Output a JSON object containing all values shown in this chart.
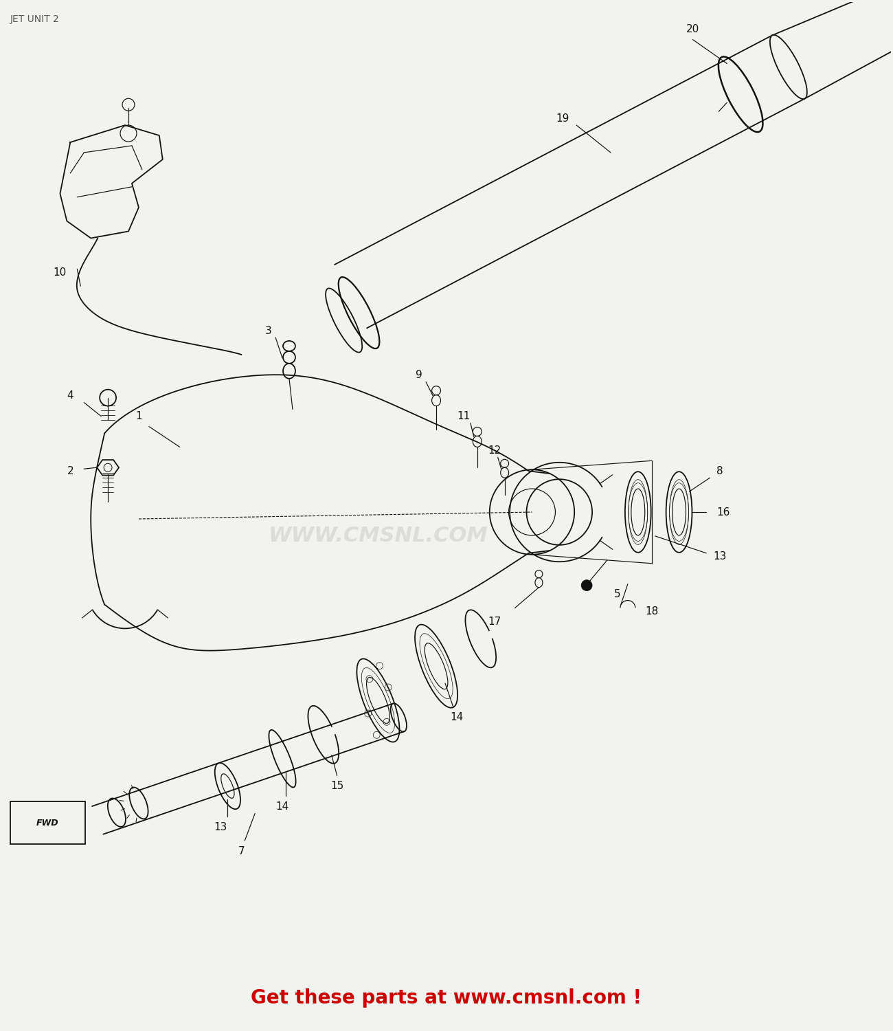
{
  "title": "JET UNIT 2",
  "title_color": "#555555",
  "title_fontsize": 10,
  "watermark": "WWW.CMSNL.COM",
  "watermark_color": "#bbbbbb",
  "watermark_fontsize": 22,
  "footer": "Get these parts at www.cmsnl.com !",
  "footer_color": "#cc0000",
  "footer_fontsize": 20,
  "background_color": "#f2f2ef",
  "line_color": "#111111",
  "label_color": "#111111",
  "label_fontsize": 11
}
